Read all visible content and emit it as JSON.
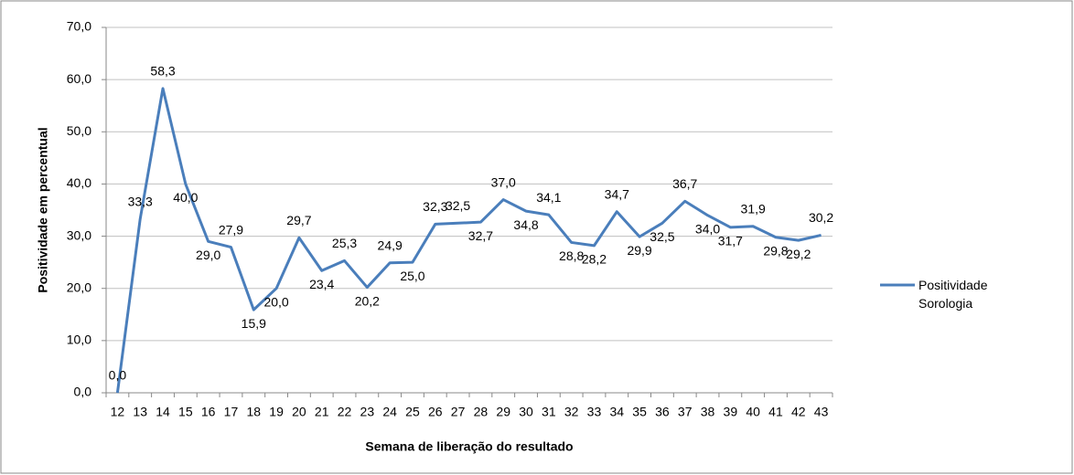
{
  "chart_data": {
    "type": "line",
    "x_label": "Semana de liberação do resultado",
    "y_label": "Positividade em percentual",
    "categories": [
      "12",
      "13",
      "14",
      "15",
      "16",
      "17",
      "18",
      "19",
      "20",
      "21",
      "22",
      "23",
      "24",
      "25",
      "26",
      "27",
      "28",
      "29",
      "30",
      "31",
      "32",
      "33",
      "34",
      "35",
      "36",
      "37",
      "38",
      "39",
      "40",
      "41",
      "42",
      "43"
    ],
    "series": [
      {
        "name": "Positividade Sorologia",
        "color": "#4a7ebb",
        "values": [
          0.0,
          33.3,
          58.3,
          40.0,
          29.0,
          27.9,
          15.9,
          20.0,
          29.7,
          23.4,
          25.3,
          20.2,
          24.9,
          25.0,
          32.3,
          32.5,
          32.7,
          37.0,
          34.8,
          34.1,
          28.8,
          28.2,
          34.7,
          29.9,
          32.5,
          36.7,
          34.0,
          31.7,
          31.9,
          29.8,
          29.2,
          30.2
        ],
        "value_labels": [
          "0,0",
          "33,3",
          "58,3",
          "40,0",
          "29,0",
          "27,9",
          "15,9",
          "20,0",
          "29,7",
          "23,4",
          "25,3",
          "20,2",
          "24,9",
          "25,0",
          "32,3",
          "32,5",
          "32,7",
          "37,0",
          "34,8",
          "34,1",
          "28,8",
          "28,2",
          "34,7",
          "29,9",
          "32,5",
          "36,7",
          "34,0",
          "31,7",
          "31,9",
          "29,8",
          "29,2",
          "30,2"
        ]
      }
    ],
    "ylim": [
      0,
      70
    ],
    "yticks": [
      {
        "value": 0,
        "label": "0,0"
      },
      {
        "value": 10,
        "label": "10,0"
      },
      {
        "value": 20,
        "label": "20,0"
      },
      {
        "value": 30,
        "label": "30,0"
      },
      {
        "value": 40,
        "label": "40,0"
      },
      {
        "value": 50,
        "label": "50,0"
      },
      {
        "value": 60,
        "label": "60,0"
      },
      {
        "value": 70,
        "label": "70,0"
      }
    ],
    "grid": true,
    "legend": "right"
  }
}
